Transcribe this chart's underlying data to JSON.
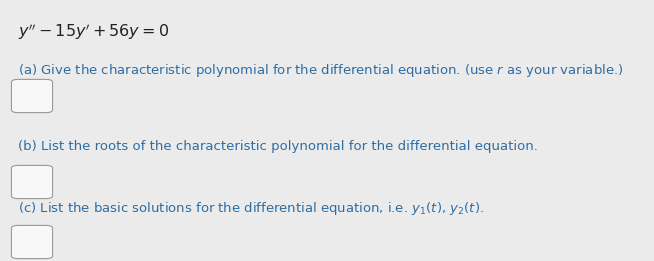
{
  "background_color": "#ebebeb",
  "title_equation": "$y'' - 15y' + 56y = 0$",
  "part_a_label": "(a) Give the characteristic polynomial for the differential equation. (use $r$ as your variable.)",
  "part_b_label": "(b) List the roots of the characteristic polynomial for the differential equation.",
  "part_c_label": "(c) List the basic solutions for the differential equation, i.e. $y_1(t)$, $y_2(t)$.",
  "text_color": "#2e6da4",
  "equation_color": "#222222",
  "box_color": "#f8f8f8",
  "box_edge_color": "#999999",
  "font_size_eq": 11.5,
  "font_size_label": 9.5,
  "fig_width": 6.54,
  "fig_height": 2.61,
  "dpi": 100
}
